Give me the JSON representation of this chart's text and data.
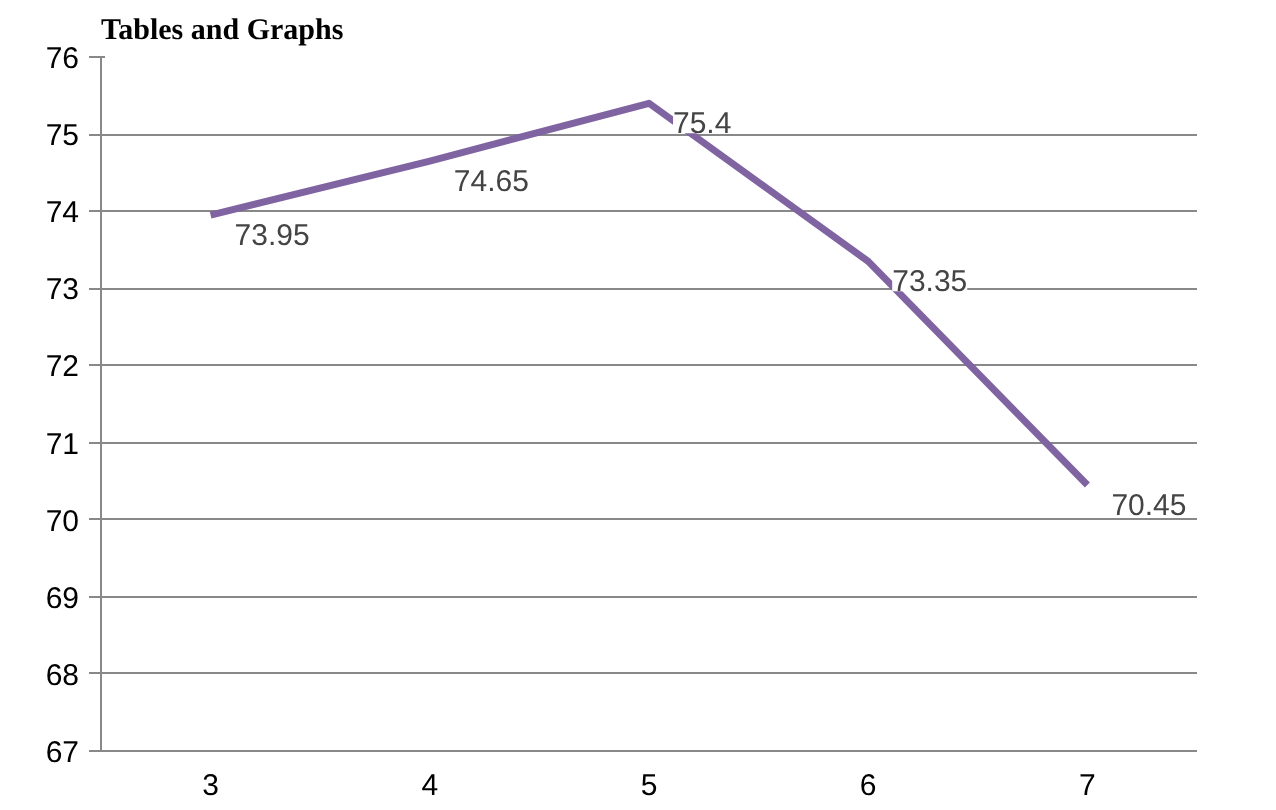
{
  "chart_data": {
    "type": "line",
    "title": "Tables and Graphs",
    "categories": [
      "3",
      "4",
      "5",
      "6",
      "7"
    ],
    "series": [
      {
        "color": "#8064a2",
        "values": [
          73.95,
          74.65,
          75.4,
          73.35,
          70.45
        ]
      }
    ],
    "ylim": [
      67,
      76
    ],
    "yticks": [
      67,
      68,
      69,
      70,
      71,
      72,
      73,
      74,
      75,
      76
    ],
    "grid": "y",
    "data_labels": true,
    "marker": "none",
    "line_style": "solid"
  }
}
